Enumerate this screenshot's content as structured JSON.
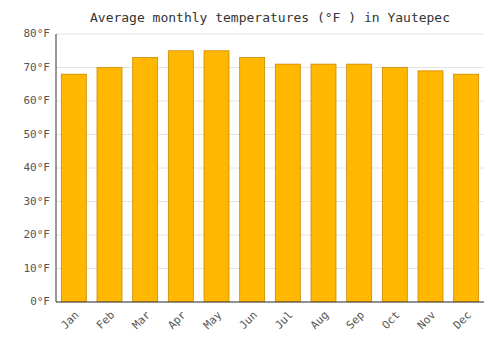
{
  "chart_data": {
    "type": "bar",
    "title": "Average monthly temperatures (°F ) in Yautepec",
    "categories": [
      "Jan",
      "Feb",
      "Mar",
      "Apr",
      "May",
      "Jun",
      "Jul",
      "Aug",
      "Sep",
      "Oct",
      "Nov",
      "Dec"
    ],
    "values": [
      68,
      70,
      73,
      75,
      75,
      73,
      71,
      71,
      71,
      70,
      69,
      68
    ],
    "color": "#FFB700",
    "ylim": [
      0,
      80
    ],
    "yticks": [
      {
        "value": 0,
        "label": "0°F"
      },
      {
        "value": 10,
        "label": "10°F"
      },
      {
        "value": 20,
        "label": "20°F"
      },
      {
        "value": 30,
        "label": "30°F"
      },
      {
        "value": 40,
        "label": "40°F"
      },
      {
        "value": 50,
        "label": "50°F"
      },
      {
        "value": 60,
        "label": "60°F"
      },
      {
        "value": 70,
        "label": "70°F"
      },
      {
        "value": 80,
        "label": "80°F"
      }
    ],
    "grid": true
  }
}
